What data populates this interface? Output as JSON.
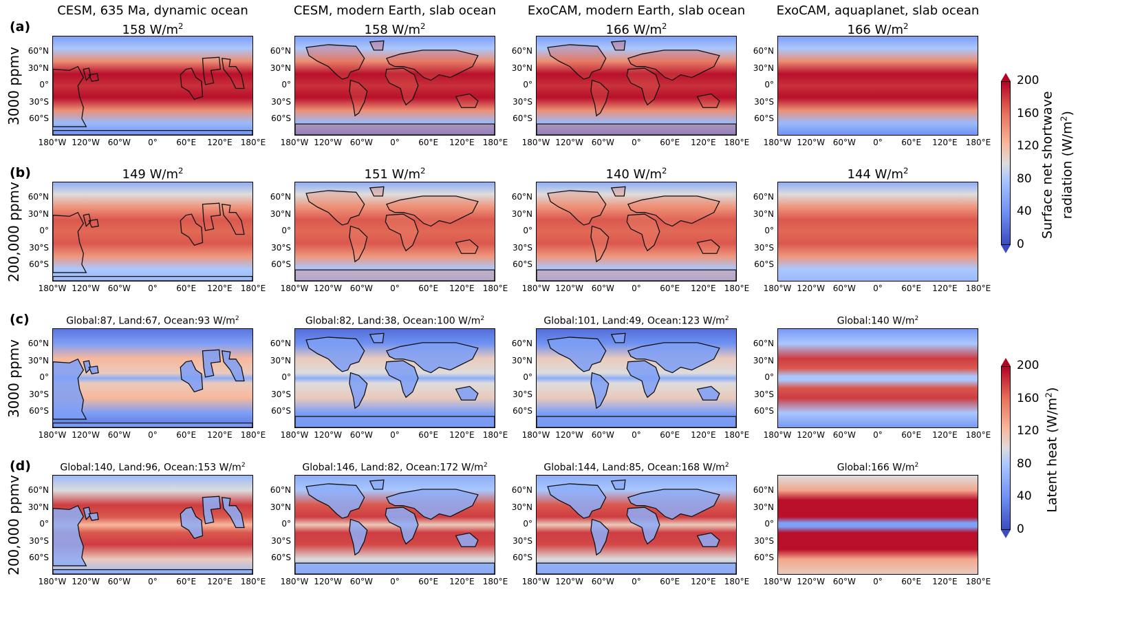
{
  "columns": [
    {
      "title_line1": "CESM, 635 Ma, dynamic ocean",
      "style": "paleo"
    },
    {
      "title_line1": "CESM, modern Earth, slab ocean",
      "style": "modern"
    },
    {
      "title_line1": "ExoCAM, modern Earth, slab ocean",
      "style": "modern"
    },
    {
      "title_line1": "ExoCAM, aquaplanet, slab ocean",
      "style": "aqua"
    }
  ],
  "rows": [
    {
      "label": "(a)",
      "side": "3000 ppmv",
      "field": "sw",
      "values": [
        "158",
        "158",
        "166",
        "166"
      ]
    },
    {
      "label": "(b)",
      "side": "200,000 ppmv",
      "field": "sw",
      "values": [
        "149",
        "151",
        "140",
        "144"
      ]
    },
    {
      "label": "(c)",
      "side": "3000 ppmv",
      "field": "lh",
      "values": [
        "Global:87, Land:67, Ocean:93",
        "Global:82, Land:38, Ocean:100",
        "Global:101, Land:49, Ocean:123",
        "Global:140"
      ]
    },
    {
      "label": "(d)",
      "side": "200,000 ppmv",
      "field": "lh",
      "values": [
        "Global:140, Land:96, Ocean:153",
        "Global:146, Land:82, Ocean:172",
        "Global:144, Land:85, Ocean:168",
        "Global:166"
      ]
    }
  ],
  "unit": "W/m",
  "unit_sup": "2",
  "x_ticks": [
    "180°W",
    "120°W",
    "60°W",
    "0°",
    "60°E",
    "120°E",
    "180°E"
  ],
  "y_ticks": [
    "60°N",
    "30°N",
    "0°",
    "30°S",
    "60°S"
  ],
  "colorbars": [
    {
      "label_line1": "Surface net shortwave",
      "label_line2": "radiation (W/m",
      "label_close": ")",
      "ticks": [
        "200",
        "160",
        "120",
        "80",
        "40",
        "0"
      ]
    },
    {
      "label_line1": "Latent heat (W/m",
      "label_line2": "",
      "label_close": ")",
      "ticks": [
        "200",
        "160",
        "120",
        "80",
        "40",
        "0"
      ]
    }
  ],
  "colors": {
    "blue": "#3b4cc0",
    "white": "#dddcdc",
    "red": "#b40426"
  }
}
